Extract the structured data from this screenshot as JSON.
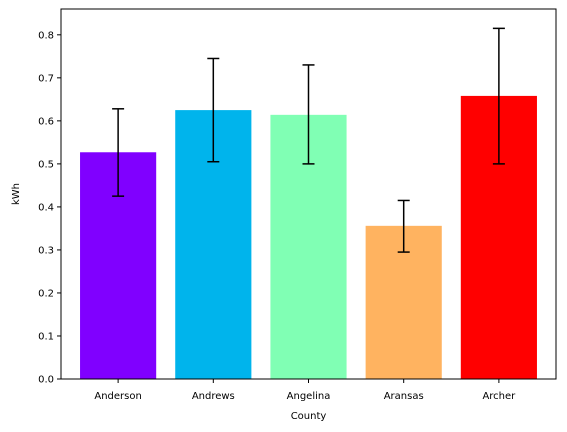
{
  "chart_data": {
    "type": "bar",
    "title": "",
    "xlabel": "County",
    "ylabel": "kWh",
    "categories": [
      "Anderson",
      "Andrews",
      "Angelina",
      "Aransas",
      "Archer"
    ],
    "values": [
      0.527,
      0.625,
      0.614,
      0.356,
      0.658
    ],
    "error_low": [
      0.425,
      0.505,
      0.5,
      0.295,
      0.5
    ],
    "error_high": [
      0.628,
      0.745,
      0.73,
      0.415,
      0.815
    ],
    "colors": [
      "#8000ff",
      "#00b4ec",
      "#80ffb4",
      "#ffb360",
      "#ff0000"
    ],
    "ylim": [
      0,
      0.86
    ],
    "yticks": [
      0.0,
      0.1,
      0.2,
      0.3,
      0.4,
      0.5,
      0.6,
      0.7,
      0.8
    ],
    "ytick_labels": [
      "0.0",
      "0.1",
      "0.2",
      "0.3",
      "0.4",
      "0.5",
      "0.6",
      "0.7",
      "0.8"
    ],
    "grid": false,
    "legend": "none"
  }
}
